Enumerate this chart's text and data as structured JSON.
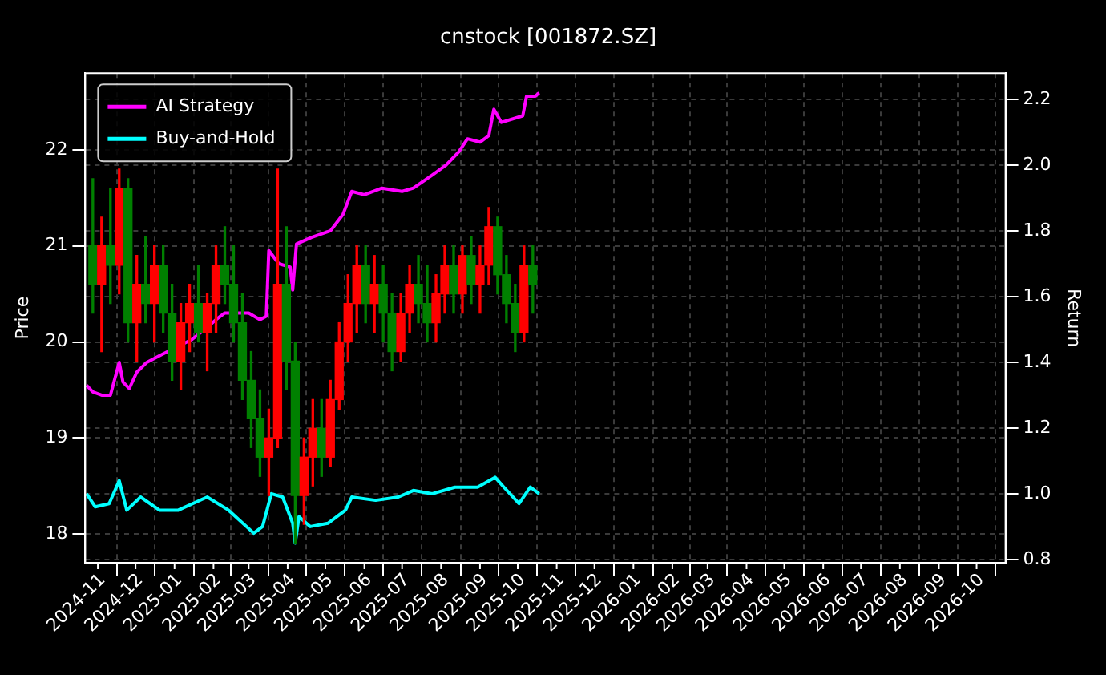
{
  "chart_data": {
    "type": "candlestick",
    "title": "cnstock [001872.SZ]",
    "ylabel": "Price",
    "y2label": "Return",
    "x": [
      "2024-10-28",
      "2024-11-04",
      "2024-11-11",
      "2024-11-18",
      "2024-11-25",
      "2024-12-02",
      "2024-12-09",
      "2024-12-16",
      "2024-12-23",
      "2024-12-30",
      "2025-01-06",
      "2025-01-13",
      "2025-01-20",
      "2025-01-27",
      "2025-02-03",
      "2025-02-10",
      "2025-02-17",
      "2025-02-24",
      "2025-03-03",
      "2025-03-10",
      "2025-03-17",
      "2025-03-24",
      "2025-03-31",
      "2025-04-07",
      "2025-04-14",
      "2025-04-21",
      "2025-04-28",
      "2025-05-05",
      "2025-05-12",
      "2025-05-19",
      "2025-05-26",
      "2025-06-02",
      "2025-06-09",
      "2025-06-16",
      "2025-06-23",
      "2025-06-30",
      "2025-07-07",
      "2025-07-14",
      "2025-07-21",
      "2025-07-28",
      "2025-08-04",
      "2025-08-11",
      "2025-08-18",
      "2025-08-25",
      "2025-09-01",
      "2025-09-08",
      "2025-09-15",
      "2025-09-22",
      "2025-09-29",
      "2025-10-06",
      "2025-10-13"
    ],
    "ohlc": [
      [
        21.0,
        21.7,
        20.3,
        20.6
      ],
      [
        20.6,
        21.3,
        19.9,
        21.0
      ],
      [
        21.0,
        21.6,
        20.4,
        20.8
      ],
      [
        20.8,
        21.8,
        20.5,
        21.6
      ],
      [
        21.6,
        21.7,
        20.0,
        20.2
      ],
      [
        20.2,
        20.9,
        19.8,
        20.6
      ],
      [
        20.6,
        21.1,
        20.2,
        20.4
      ],
      [
        20.4,
        21.0,
        20.0,
        20.8
      ],
      [
        20.8,
        21.0,
        20.1,
        20.3
      ],
      [
        20.3,
        20.6,
        19.6,
        19.8
      ],
      [
        19.8,
        20.4,
        19.5,
        20.2
      ],
      [
        20.2,
        20.6,
        19.9,
        20.4
      ],
      [
        20.4,
        20.8,
        20.0,
        20.1
      ],
      [
        20.1,
        20.5,
        19.7,
        20.4
      ],
      [
        20.4,
        21.0,
        20.1,
        20.8
      ],
      [
        20.8,
        21.2,
        20.4,
        20.6
      ],
      [
        20.6,
        21.0,
        20.0,
        20.2
      ],
      [
        20.2,
        20.5,
        19.4,
        19.6
      ],
      [
        19.6,
        19.9,
        18.9,
        19.2
      ],
      [
        19.2,
        19.5,
        18.6,
        18.8
      ],
      [
        18.8,
        19.3,
        18.4,
        19.0
      ],
      [
        19.0,
        21.8,
        18.9,
        20.6
      ],
      [
        20.6,
        21.2,
        19.5,
        19.8
      ],
      [
        19.8,
        20.0,
        17.9,
        18.4
      ],
      [
        18.4,
        19.0,
        18.1,
        18.8
      ],
      [
        18.8,
        19.4,
        18.5,
        19.1
      ],
      [
        19.1,
        19.4,
        18.6,
        18.8
      ],
      [
        18.8,
        19.6,
        18.7,
        19.4
      ],
      [
        19.4,
        20.2,
        19.3,
        20.0
      ],
      [
        20.0,
        20.7,
        19.8,
        20.4
      ],
      [
        20.4,
        21.0,
        20.1,
        20.8
      ],
      [
        20.8,
        21.0,
        20.2,
        20.4
      ],
      [
        20.4,
        20.9,
        20.1,
        20.6
      ],
      [
        20.6,
        20.8,
        20.0,
        20.3
      ],
      [
        20.3,
        20.5,
        19.7,
        19.9
      ],
      [
        19.9,
        20.5,
        19.8,
        20.3
      ],
      [
        20.3,
        20.8,
        20.1,
        20.6
      ],
      [
        20.6,
        20.9,
        20.2,
        20.4
      ],
      [
        20.4,
        20.8,
        20.0,
        20.2
      ],
      [
        20.2,
        20.7,
        20.0,
        20.5
      ],
      [
        20.5,
        21.0,
        20.3,
        20.8
      ],
      [
        20.8,
        21.0,
        20.3,
        20.5
      ],
      [
        20.5,
        21.0,
        20.3,
        20.9
      ],
      [
        20.9,
        21.1,
        20.4,
        20.6
      ],
      [
        20.6,
        21.0,
        20.3,
        20.8
      ],
      [
        20.8,
        21.4,
        20.6,
        21.2
      ],
      [
        21.2,
        21.3,
        20.5,
        20.7
      ],
      [
        20.7,
        20.9,
        20.2,
        20.4
      ],
      [
        20.4,
        20.6,
        19.9,
        20.1
      ],
      [
        20.1,
        21.0,
        20.0,
        20.8
      ],
      [
        20.8,
        21.0,
        20.3,
        20.6
      ]
    ],
    "colors": [
      "#008000",
      "#ff0000",
      "#008000",
      "#ff0000",
      "#008000",
      "#ff0000",
      "#008000",
      "#ff0000",
      "#008000",
      "#008000",
      "#ff0000",
      "#ff0000",
      "#008000",
      "#ff0000",
      "#ff0000",
      "#008000",
      "#008000",
      "#008000",
      "#008000",
      "#008000",
      "#ff0000",
      "#ff0000",
      "#008000",
      "#008000",
      "#ff0000",
      "#ff0000",
      "#008000",
      "#ff0000",
      "#ff0000",
      "#ff0000",
      "#ff0000",
      "#008000",
      "#ff0000",
      "#008000",
      "#008000",
      "#ff0000",
      "#ff0000",
      "#008000",
      "#008000",
      "#ff0000",
      "#ff0000",
      "#008000",
      "#ff0000",
      "#008000",
      "#ff0000",
      "#ff0000",
      "#008000",
      "#008000",
      "#008000",
      "#ff0000",
      "#008000"
    ],
    "series": [
      {
        "name": "AI Strategy",
        "type": "line",
        "axis": "y2",
        "color": "#ff00ff",
        "x": [
          "2024-10-23",
          "2024-10-28",
          "2024-11-04",
          "2024-11-11",
          "2024-11-18",
          "2024-11-21",
          "2024-11-26",
          "2024-12-02",
          "2024-12-10",
          "2024-12-20",
          "2025-01-15",
          "2025-01-25",
          "2025-02-03",
          "2025-02-10",
          "2025-02-20",
          "2025-03-01",
          "2025-03-10",
          "2025-03-15",
          "2025-03-17",
          "2025-03-25",
          "2025-04-03",
          "2025-04-05",
          "2025-04-08",
          "2025-04-20",
          "2025-05-05",
          "2025-05-15",
          "2025-05-22",
          "2025-06-01",
          "2025-06-15",
          "2025-07-01",
          "2025-07-10",
          "2025-07-25",
          "2025-08-05",
          "2025-08-15",
          "2025-08-22",
          "2025-09-01",
          "2025-09-08",
          "2025-09-12",
          "2025-09-18",
          "2025-10-05",
          "2025-10-08",
          "2025-10-15",
          "2025-10-18"
        ],
        "values": [
          1.33,
          1.31,
          1.3,
          1.3,
          1.4,
          1.34,
          1.32,
          1.37,
          1.4,
          1.42,
          1.47,
          1.5,
          1.53,
          1.55,
          1.55,
          1.55,
          1.53,
          1.54,
          1.74,
          1.7,
          1.69,
          1.62,
          1.76,
          1.78,
          1.8,
          1.85,
          1.92,
          1.91,
          1.93,
          1.92,
          1.93,
          1.97,
          2.0,
          2.04,
          2.08,
          2.07,
          2.09,
          2.17,
          2.13,
          2.15,
          2.21,
          2.21,
          2.22
        ]
      },
      {
        "name": "Buy-and-Hold",
        "type": "line",
        "axis": "y2",
        "color": "#00ffff",
        "x": [
          "2024-10-23",
          "2024-10-30",
          "2024-11-10",
          "2024-11-18",
          "2024-11-24",
          "2024-12-05",
          "2024-12-20",
          "2025-01-04",
          "2025-01-27",
          "2025-02-13",
          "2025-03-05",
          "2025-03-12",
          "2025-03-19",
          "2025-03-28",
          "2025-04-05",
          "2025-04-07",
          "2025-04-10",
          "2025-04-19",
          "2025-05-03",
          "2025-05-17",
          "2025-05-22",
          "2025-06-10",
          "2025-06-28",
          "2025-07-10",
          "2025-07-25",
          "2025-08-12",
          "2025-08-30",
          "2025-09-13",
          "2025-09-20",
          "2025-10-02",
          "2025-10-11",
          "2025-10-18"
        ],
        "values": [
          1.0,
          0.96,
          0.97,
          1.04,
          0.95,
          0.99,
          0.95,
          0.95,
          0.99,
          0.95,
          0.88,
          0.9,
          1.0,
          0.99,
          0.91,
          0.85,
          0.93,
          0.9,
          0.91,
          0.95,
          0.99,
          0.98,
          0.99,
          1.01,
          1.0,
          1.02,
          1.02,
          1.05,
          1.02,
          0.97,
          1.02,
          1.0
        ]
      }
    ],
    "xlim": [
      "2024-10-22",
      "2026-10-24"
    ],
    "xticks": [
      "2024-11",
      "2024-12",
      "2025-01",
      "2025-02",
      "2025-03",
      "2025-04",
      "2025-05",
      "2025-06",
      "2025-07",
      "2025-08",
      "2025-09",
      "2025-10",
      "2025-11",
      "2025-12",
      "2026-01",
      "2026-02",
      "2026-03",
      "2026-04",
      "2026-05",
      "2026-06",
      "2026-07",
      "2026-08",
      "2026-09",
      "2026-10"
    ],
    "ylim": [
      17.7,
      22.8
    ],
    "yticks": [
      18,
      19,
      20,
      21,
      22
    ],
    "y2lim": [
      0.79,
      2.28
    ],
    "y2ticks": [
      0.8,
      {
        "value": 1,
        "label": "1.0"
      },
      1.2,
      1.4,
      1.6,
      1.8,
      {
        "value": 2,
        "label": "2.0"
      },
      2.2
    ],
    "grid": true,
    "legend": "top left",
    "line_style": "solid"
  }
}
